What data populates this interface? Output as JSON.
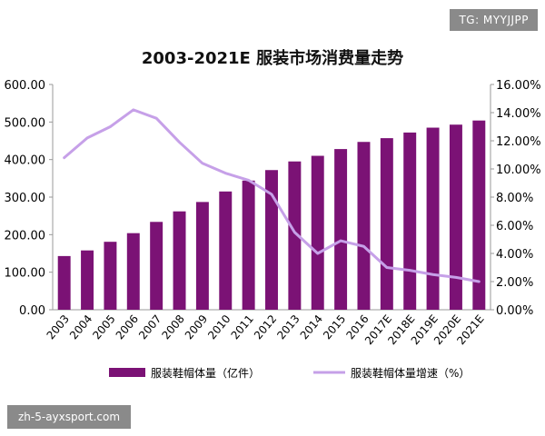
{
  "watermarks": {
    "top": "TG: MYYJJPP",
    "bottom": "zh-5-ayxsport.com"
  },
  "colors": {
    "bar": "#7b1275",
    "line": "#c6a0e8",
    "axis": "#999999",
    "text": "#000000"
  },
  "chart_data": {
    "type": "bar",
    "title": "2003-2021E 服装市场消费量走势",
    "categories": [
      "2003",
      "2004",
      "2005",
      "2006",
      "2007",
      "2008",
      "2009",
      "2010",
      "2011",
      "2012",
      "2013",
      "2014",
      "2015",
      "2016",
      "2017E",
      "2018E",
      "2019E",
      "2020E",
      "2021E"
    ],
    "series": [
      {
        "name": "服装鞋帽体量（亿件）",
        "type": "bar",
        "axis": "left",
        "values": [
          143,
          158,
          181,
          204,
          234,
          262,
          287,
          315,
          344,
          372,
          395,
          410,
          428,
          447,
          457,
          472,
          485,
          493,
          504
        ]
      },
      {
        "name": "服装鞋帽体量增速（%）",
        "type": "line",
        "axis": "right",
        "values": [
          10.8,
          12.2,
          13.0,
          14.2,
          13.6,
          11.9,
          10.4,
          9.7,
          9.2,
          8.2,
          5.5,
          4.0,
          4.9,
          4.5,
          3.0,
          2.8,
          2.5,
          2.3,
          2.0
        ]
      }
    ],
    "yleft": {
      "lim": [
        0,
        600
      ],
      "ticks": [
        "0.00",
        "100.00",
        "200.00",
        "300.00",
        "400.00",
        "500.00",
        "600.00"
      ]
    },
    "yright": {
      "lim": [
        0,
        16
      ],
      "ticks": [
        "0.00%",
        "2.00%",
        "4.00%",
        "6.00%",
        "8.00%",
        "10.00%",
        "12.00%",
        "14.00%",
        "16.00%"
      ]
    },
    "grid": false,
    "legend_position": "bottom"
  }
}
